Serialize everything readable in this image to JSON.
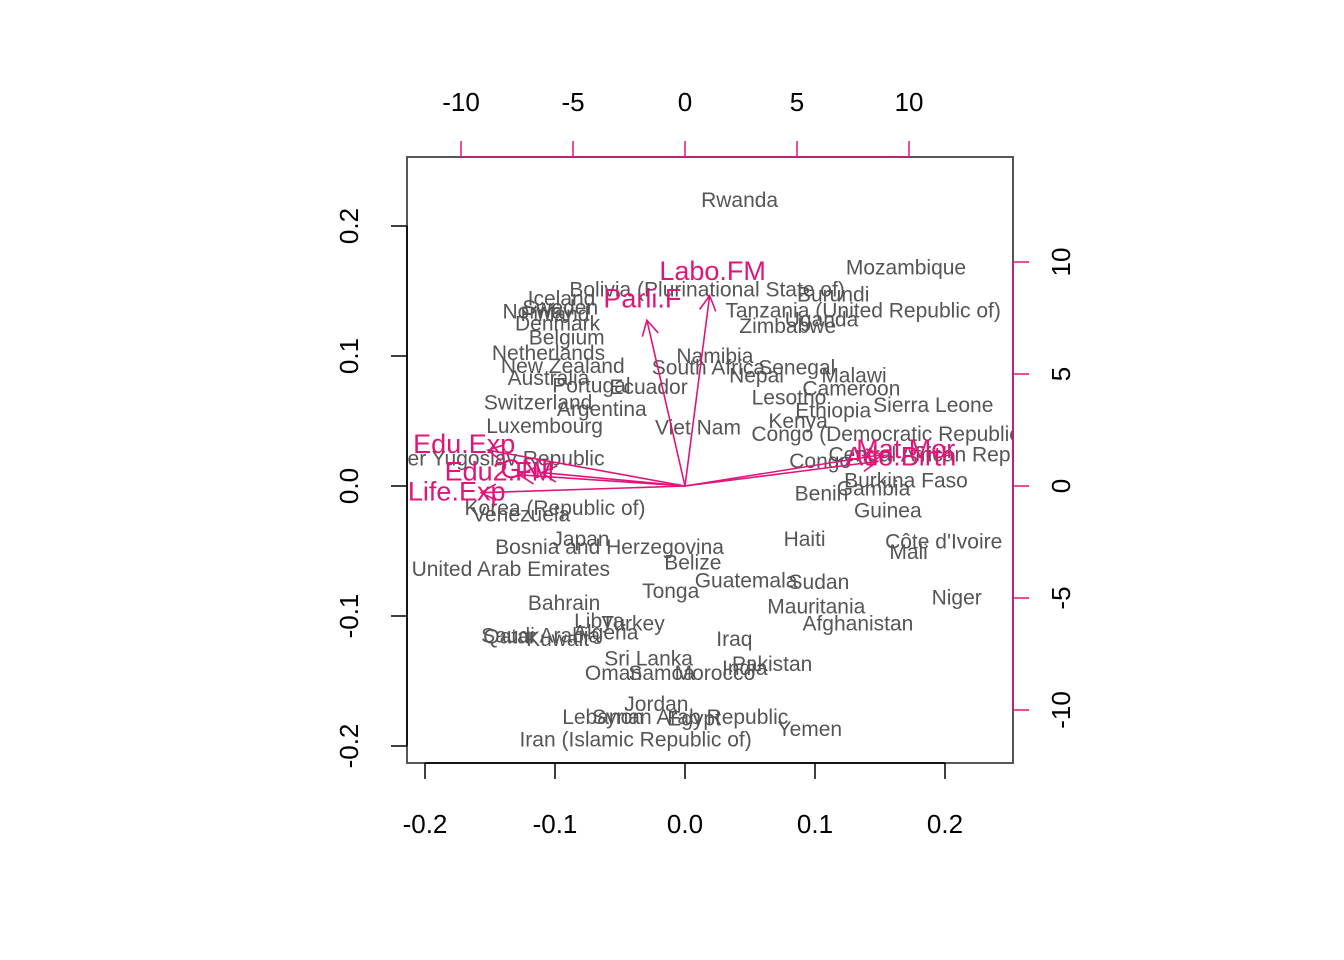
{
  "colors": {
    "observations": "#555555",
    "arrows": "#E0157A",
    "axis": "#000000",
    "box": "#555555"
  },
  "chart_data": {
    "type": "scatter",
    "bottom_axis": {
      "range": [
        -0.22,
        0.25
      ],
      "ticks": [
        -0.2,
        -0.1,
        0.0,
        0.1,
        0.2
      ],
      "tick_labels": [
        "-0.2",
        "-0.1",
        "0.0",
        "0.1",
        "0.2"
      ]
    },
    "left_axis": {
      "range": [
        -0.213,
        0.253
      ],
      "ticks": [
        -0.2,
        -0.1,
        0.0,
        0.1,
        0.2
      ],
      "tick_labels": [
        "-0.2",
        "-0.1",
        "0.0",
        "0.1",
        "0.2"
      ]
    },
    "top_axis": {
      "ticks": [
        -10,
        -5,
        0,
        5,
        10
      ],
      "tick_labels": [
        "-10",
        "-5",
        "0",
        "5",
        "10"
      ]
    },
    "right_axis": {
      "ticks": [
        -10,
        -5,
        0,
        5,
        10
      ],
      "tick_labels": [
        "-10",
        "-5",
        "0",
        "5",
        "10"
      ]
    },
    "points": [
      {
        "label": "Rwanda",
        "x": 0.042,
        "y": 0.219
      },
      {
        "label": "Mozambique",
        "x": 0.17,
        "y": 0.167
      },
      {
        "label": "Burundi",
        "x": 0.114,
        "y": 0.146
      },
      {
        "label": "Bolivia (Plurinational State of)",
        "x": 0.017,
        "y": 0.15
      },
      {
        "label": "Iceland",
        "x": -0.095,
        "y": 0.143
      },
      {
        "label": "Norway",
        "x": -0.113,
        "y": 0.133
      },
      {
        "label": "Sweden",
        "x": -0.096,
        "y": 0.136
      },
      {
        "label": "Finland",
        "x": -0.1,
        "y": 0.131
      },
      {
        "label": "Tanzania (United Republic of)",
        "x": 0.137,
        "y": 0.134
      },
      {
        "label": "Uganda",
        "x": 0.105,
        "y": 0.127
      },
      {
        "label": "Denmark",
        "x": -0.098,
        "y": 0.124
      },
      {
        "label": "Zimbabwe",
        "x": 0.079,
        "y": 0.122
      },
      {
        "label": "Belgium",
        "x": -0.091,
        "y": 0.113
      },
      {
        "label": "Netherlands",
        "x": -0.105,
        "y": 0.101
      },
      {
        "label": "Namibia",
        "x": 0.023,
        "y": 0.099
      },
      {
        "label": "New Zealand",
        "x": -0.094,
        "y": 0.091
      },
      {
        "label": "South Africa",
        "x": 0.018,
        "y": 0.09
      },
      {
        "label": "Senegal",
        "x": 0.086,
        "y": 0.09
      },
      {
        "label": "Nepal",
        "x": 0.055,
        "y": 0.084
      },
      {
        "label": "Malawi",
        "x": 0.13,
        "y": 0.084
      },
      {
        "label": "Australia",
        "x": -0.105,
        "y": 0.082
      },
      {
        "label": "Ecuador",
        "x": -0.028,
        "y": 0.075
      },
      {
        "label": "Portugal",
        "x": -0.072,
        "y": 0.076
      },
      {
        "label": "Cameroon",
        "x": 0.128,
        "y": 0.074
      },
      {
        "label": "Lesotho",
        "x": 0.08,
        "y": 0.067
      },
      {
        "label": "Switzerland",
        "x": -0.113,
        "y": 0.063
      },
      {
        "label": "Argentina",
        "x": -0.064,
        "y": 0.058
      },
      {
        "label": "Ethiopia",
        "x": 0.114,
        "y": 0.057
      },
      {
        "label": "Sierra Leone",
        "x": 0.191,
        "y": 0.061
      },
      {
        "label": "Kenya",
        "x": 0.087,
        "y": 0.049
      },
      {
        "label": "Luxembourg",
        "x": -0.108,
        "y": 0.045
      },
      {
        "label": "Viet Nam",
        "x": 0.01,
        "y": 0.044
      },
      {
        "label": "Congo (Democratic Republic)",
        "x": 0.157,
        "y": 0.039
      },
      {
        "label": "Central African Republic",
        "x": 0.197,
        "y": 0.023
      },
      {
        "label": "The former Yugoslav Republic",
        "x": -0.17,
        "y": 0.02
      },
      {
        "label": "Congo",
        "x": 0.104,
        "y": 0.018
      },
      {
        "label": "Gambia",
        "x": 0.145,
        "y": -0.003
      },
      {
        "label": "Burkina Faso",
        "x": 0.17,
        "y": 0.003
      },
      {
        "label": "Benin",
        "x": 0.105,
        "y": -0.007
      },
      {
        "label": "Korea (Republic of)",
        "x": -0.1,
        "y": -0.018
      },
      {
        "label": "Venezuela",
        "x": -0.126,
        "y": -0.023
      },
      {
        "label": "Guinea",
        "x": 0.156,
        "y": -0.02
      },
      {
        "label": "Côte d'Ivoire",
        "x": 0.199,
        "y": -0.044
      },
      {
        "label": "Haiti",
        "x": 0.092,
        "y": -0.042
      },
      {
        "label": "Mali",
        "x": 0.172,
        "y": -0.052
      },
      {
        "label": "Bosnia and Herzegovina",
        "x": -0.058,
        "y": -0.048
      },
      {
        "label": "Japan",
        "x": -0.08,
        "y": -0.042
      },
      {
        "label": "Belize",
        "x": 0.006,
        "y": -0.06
      },
      {
        "label": "United Arab Emirates",
        "x": -0.134,
        "y": -0.065
      },
      {
        "label": "Guatemala",
        "x": 0.047,
        "y": -0.074
      },
      {
        "label": "Sudan",
        "x": 0.103,
        "y": -0.075
      },
      {
        "label": "Tonga",
        "x": -0.011,
        "y": -0.082
      },
      {
        "label": "Bahrain",
        "x": -0.093,
        "y": -0.091
      },
      {
        "label": "Niger",
        "x": 0.209,
        "y": -0.087
      },
      {
        "label": "Mauritania",
        "x": 0.101,
        "y": -0.094
      },
      {
        "label": "Afghanistan",
        "x": 0.133,
        "y": -0.107
      },
      {
        "label": "Libya",
        "x": -0.066,
        "y": -0.105
      },
      {
        "label": "Turkey",
        "x": -0.04,
        "y": -0.107
      },
      {
        "label": "Qatar",
        "x": -0.135,
        "y": -0.117
      },
      {
        "label": "Saudi Arabia",
        "x": -0.111,
        "y": -0.116
      },
      {
        "label": "Kuwait",
        "x": -0.098,
        "y": -0.119
      },
      {
        "label": "Algeria",
        "x": -0.061,
        "y": -0.114
      },
      {
        "label": "Iraq",
        "x": 0.038,
        "y": -0.119
      },
      {
        "label": "Sri Lanka",
        "x": -0.028,
        "y": -0.134
      },
      {
        "label": "Pakistan",
        "x": 0.067,
        "y": -0.138
      },
      {
        "label": "India",
        "x": 0.046,
        "y": -0.141
      },
      {
        "label": "Oman",
        "x": -0.055,
        "y": -0.145
      },
      {
        "label": "Samoa",
        "x": -0.018,
        "y": -0.145
      },
      {
        "label": "Morocco",
        "x": 0.023,
        "y": -0.145
      },
      {
        "label": "Jordan",
        "x": -0.022,
        "y": -0.169
      },
      {
        "label": "Lebanon",
        "x": -0.063,
        "y": -0.179
      },
      {
        "label": "Syrian Arab Republic",
        "x": 0.004,
        "y": -0.179
      },
      {
        "label": "Egypt",
        "x": 0.007,
        "y": -0.18
      },
      {
        "label": "Yemen",
        "x": 0.096,
        "y": -0.188
      },
      {
        "label": "Iran (Islamic Republic of)",
        "x": -0.038,
        "y": -0.196
      }
    ],
    "arrows": [
      {
        "label": "Labo.FM",
        "x": 1.1,
        "y": 8.5
      },
      {
        "label": "Parli.F",
        "x": -1.7,
        "y": 7.4
      },
      {
        "label": "Edu.Exp",
        "x": -8.8,
        "y": 1.6
      },
      {
        "label": "Edu2.FM",
        "x": -7.4,
        "y": 0.5
      },
      {
        "label": "GNI",
        "x": -6.4,
        "y": 0.6
      },
      {
        "label": "Life.Exp",
        "x": -9.1,
        "y": -0.3
      },
      {
        "label": "Mat.Mor",
        "x": 8.8,
        "y": 1.4
      },
      {
        "label": "Ado.Birth",
        "x": 8.6,
        "y": 1.1
      }
    ]
  }
}
